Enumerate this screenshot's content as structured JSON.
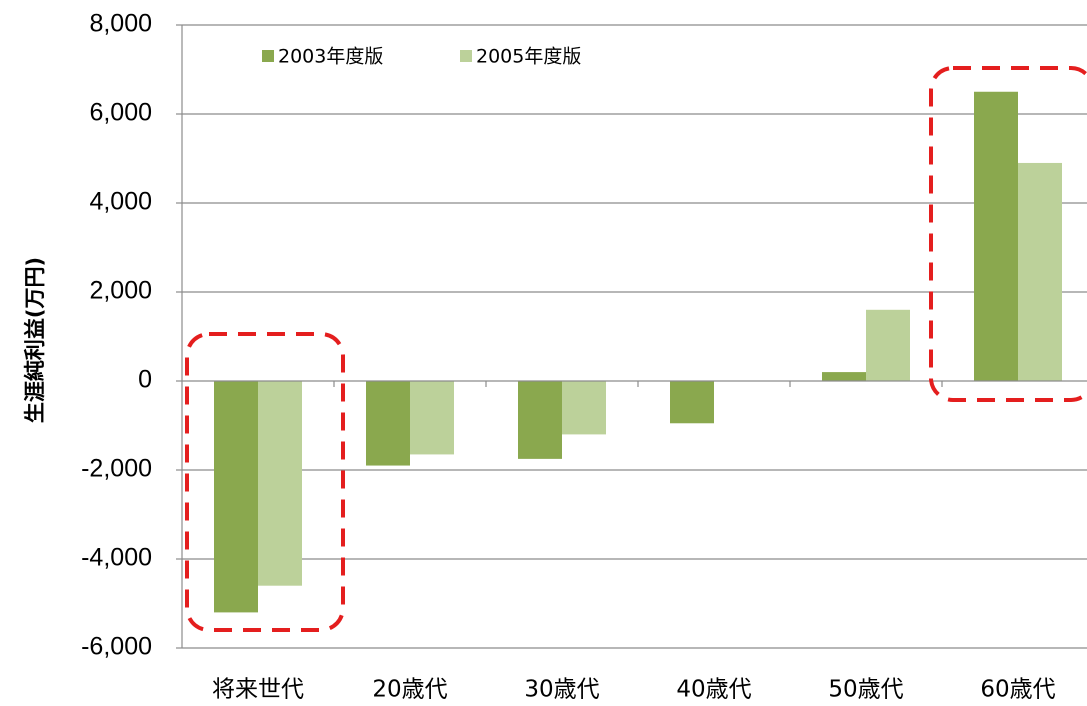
{
  "chart_data": {
    "type": "bar",
    "y_axis_label": "生涯純利益(万円)",
    "categories": [
      "将来世代",
      "20歳代",
      "30歳代",
      "40歳代",
      "50歳代",
      "60歳代"
    ],
    "series": [
      {
        "name": "2003年度版",
        "color": "#8aa84e",
        "values": [
          -5200,
          -1900,
          -1750,
          -950,
          200,
          6500
        ]
      },
      {
        "name": "2005年度版",
        "color": "#bcd19a",
        "values": [
          -4600,
          -1650,
          -1200,
          null,
          1600,
          4900
        ]
      }
    ],
    "ylim": [
      -6000,
      8000
    ],
    "yticks": [
      {
        "value": -6000,
        "label": "-6,000"
      },
      {
        "value": -4000,
        "label": "-4,000"
      },
      {
        "value": -2000,
        "label": "-2,000"
      },
      0,
      {
        "value": 2000,
        "label": "2,000"
      },
      {
        "value": 4000,
        "label": "4,000"
      },
      {
        "value": 6000,
        "label": "6,000"
      },
      {
        "value": 8000,
        "label": "8,000"
      }
    ],
    "grid": true
  }
}
